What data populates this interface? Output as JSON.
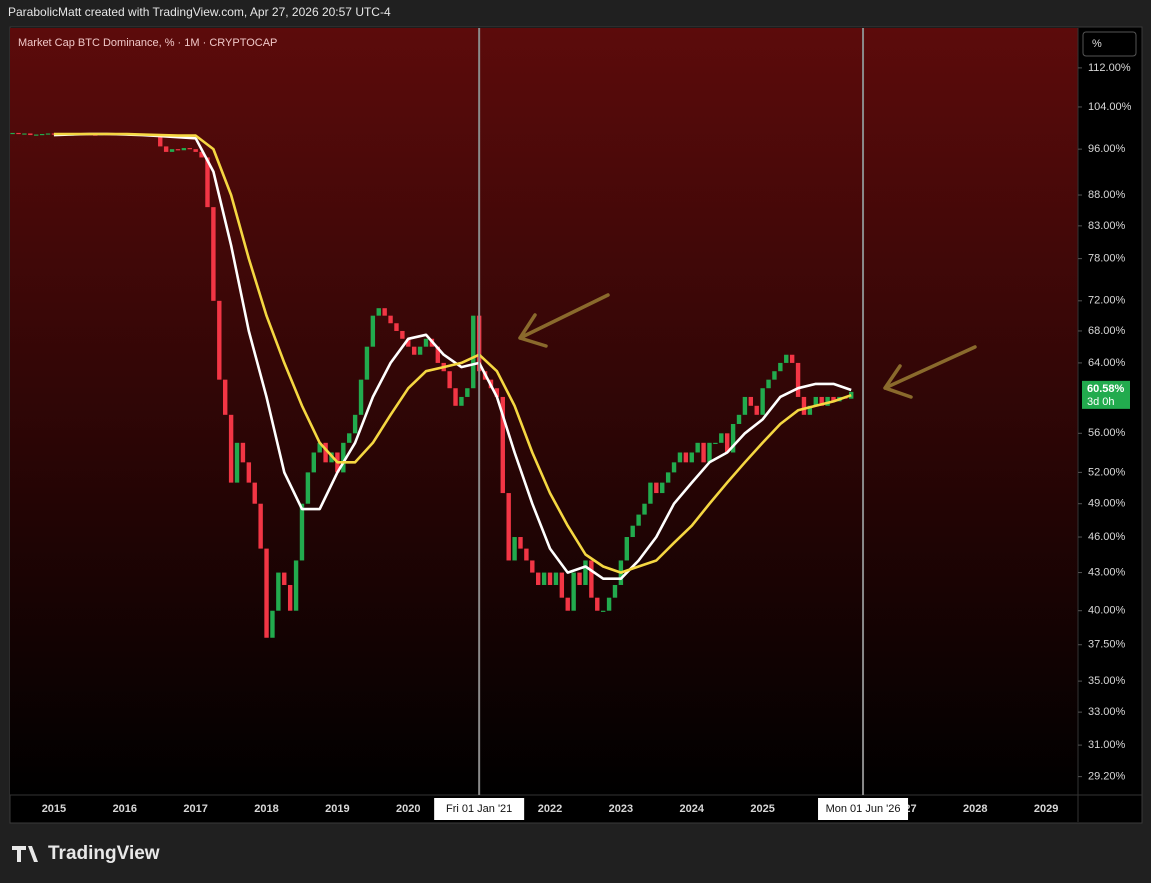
{
  "header": "ParabolicMatt created with TradingView.com, Apr 27, 2026 20:57 UTC-4",
  "brand": "TradingView",
  "chart_data": {
    "type": "candlestick",
    "title": "Market Cap BTC Dominance, % · 1M · CRYPTOCAP",
    "scale_button": "%",
    "log_scale": true,
    "grid": false,
    "up_color": "#22ab4e",
    "down_color": "#f23645",
    "x": [
      "2014-06",
      "2014-07",
      "2014-08",
      "2014-09",
      "2014-10",
      "2014-11",
      "2014-12",
      "2015-01",
      "2015-02",
      "2015-03",
      "2015-04",
      "2015-05",
      "2015-06",
      "2015-07",
      "2015-08",
      "2015-09",
      "2015-10",
      "2015-11",
      "2015-12",
      "2016-01",
      "2016-02",
      "2016-03",
      "2016-04",
      "2016-05",
      "2016-06",
      "2016-07",
      "2016-08",
      "2016-09",
      "2016-10",
      "2016-11",
      "2016-12",
      "2017-01",
      "2017-02",
      "2017-03",
      "2017-04",
      "2017-05",
      "2017-06",
      "2017-07",
      "2017-08",
      "2017-09",
      "2017-10",
      "2017-11",
      "2017-12",
      "2018-01",
      "2018-02",
      "2018-03",
      "2018-04",
      "2018-05",
      "2018-06",
      "2018-07",
      "2018-08",
      "2018-09",
      "2018-10",
      "2018-11",
      "2018-12",
      "2019-01",
      "2019-02",
      "2019-03",
      "2019-04",
      "2019-05",
      "2019-06",
      "2019-07",
      "2019-08",
      "2019-09",
      "2019-10",
      "2019-11",
      "2019-12",
      "2020-01",
      "2020-02",
      "2020-03",
      "2020-04",
      "2020-05",
      "2020-06",
      "2020-07",
      "2020-08",
      "2020-09",
      "2020-10",
      "2020-11",
      "2020-12",
      "2021-01",
      "2021-02",
      "2021-03",
      "2021-04",
      "2021-05",
      "2021-06",
      "2021-07",
      "2021-08",
      "2021-09",
      "2021-10",
      "2021-11",
      "2021-12",
      "2022-01",
      "2022-02",
      "2022-03",
      "2022-04",
      "2022-05",
      "2022-06",
      "2022-07",
      "2022-08",
      "2022-09",
      "2022-10",
      "2022-11",
      "2022-12",
      "2023-01",
      "2023-02",
      "2023-03",
      "2023-04",
      "2023-05",
      "2023-06",
      "2023-07",
      "2023-08",
      "2023-09",
      "2023-10",
      "2023-11",
      "2023-12",
      "2024-01",
      "2024-02",
      "2024-03",
      "2024-04",
      "2024-05",
      "2024-06",
      "2024-07",
      "2024-08",
      "2024-09",
      "2024-10",
      "2024-11",
      "2024-12",
      "2025-01",
      "2025-02",
      "2025-03",
      "2025-04",
      "2025-05",
      "2025-06",
      "2025-07",
      "2025-08",
      "2025-09",
      "2025-10",
      "2025-11",
      "2025-12",
      "2026-01",
      "2026-02",
      "2026-03",
      "2026-04"
    ],
    "close": [
      99.0,
      98.8,
      98.9,
      98.6,
      98.7,
      98.8,
      98.9,
      98.7,
      98.8,
      98.6,
      98.7,
      98.9,
      98.8,
      98.7,
      98.6,
      98.8,
      98.7,
      98.8,
      98.9,
      98.8,
      98.7,
      98.9,
      98.6,
      98.7,
      98.6,
      96.5,
      95.5,
      96.0,
      95.8,
      96.2,
      96.0,
      95.5,
      94.5,
      86,
      72,
      62,
      58,
      51,
      55,
      53,
      51,
      49,
      45,
      38,
      40,
      43,
      42,
      40,
      44,
      49,
      52,
      54,
      55,
      53,
      54,
      52,
      55,
      56,
      58,
      62,
      66,
      70,
      71,
      70,
      69,
      68,
      67,
      66,
      65,
      66,
      67,
      66,
      64,
      63,
      61,
      59,
      60,
      61,
      70,
      63,
      62,
      61,
      60,
      50,
      44,
      46,
      45,
      44,
      43,
      42,
      43,
      42,
      43,
      41,
      40,
      43,
      42,
      44,
      41,
      40,
      40,
      41,
      42,
      44,
      46,
      47,
      48,
      49,
      51,
      50,
      51,
      52,
      53,
      54,
      53,
      54,
      55,
      53,
      55,
      55,
      56,
      54,
      57,
      58,
      60,
      59,
      58,
      61,
      62,
      63,
      64,
      65,
      64,
      60,
      58,
      59,
      60,
      59,
      60,
      59.5,
      60,
      59.8,
      60.58
    ],
    "price_tag": {
      "label": "60.58%",
      "countdown": "3d 0h"
    },
    "ma_x": [
      "2015-01",
      "2015-04",
      "2015-07",
      "2015-10",
      "2016-01",
      "2016-04",
      "2016-07",
      "2016-10",
      "2017-01",
      "2017-04",
      "2017-07",
      "2017-10",
      "2018-01",
      "2018-04",
      "2018-07",
      "2018-10",
      "2019-01",
      "2019-04",
      "2019-07",
      "2019-10",
      "2020-01",
      "2020-04",
      "2020-07",
      "2020-10",
      "2021-01",
      "2021-04",
      "2021-07",
      "2021-10",
      "2022-01",
      "2022-04",
      "2022-07",
      "2022-10",
      "2023-01",
      "2023-04",
      "2023-07",
      "2023-10",
      "2024-01",
      "2024-04",
      "2024-07",
      "2024-10",
      "2025-01",
      "2025-04",
      "2025-07",
      "2025-10",
      "2026-01",
      "2026-04"
    ],
    "lines": [
      {
        "color": "#ffffff",
        "values": [
          98.6,
          98.7,
          98.8,
          98.8,
          98.7,
          98.6,
          98.4,
          98.2,
          98,
          92,
          80,
          68,
          60,
          52,
          48.5,
          48.5,
          52,
          55,
          60,
          64,
          67,
          67.5,
          65,
          63.5,
          64,
          60,
          54,
          49,
          45,
          43,
          43.5,
          42.5,
          42.5,
          44,
          46,
          49,
          51,
          53,
          54,
          56,
          57.5,
          60,
          61,
          61.5,
          61.5,
          60.8
        ]
      },
      {
        "color": "#f5d742",
        "values": [
          98.8,
          98.8,
          98.8,
          98.8,
          98.8,
          98.7,
          98.6,
          98.5,
          98.5,
          96,
          88,
          78,
          70,
          64,
          59,
          55,
          53,
          53,
          55,
          58,
          61,
          63,
          63.5,
          64,
          65,
          63,
          59,
          54,
          50,
          47,
          44.5,
          43.5,
          43,
          43.5,
          44,
          45.5,
          47,
          49,
          51,
          53,
          55,
          57,
          58.5,
          59,
          59.5,
          60.2
        ]
      }
    ],
    "xlim": [
      2014.38,
      2029.45
    ],
    "xticks": [
      2015,
      2016,
      2017,
      2018,
      2019,
      2020,
      2022,
      2023,
      2024,
      2025,
      2027,
      2028,
      2029
    ],
    "ylim": [
      28.2,
      120.8
    ],
    "yticks": [
      {
        "value": 112,
        "label": "112.00%"
      },
      {
        "value": 104,
        "label": "104.00%"
      },
      {
        "value": 96,
        "label": "96.00%"
      },
      {
        "value": 88,
        "label": "88.00%"
      },
      {
        "value": 83,
        "label": "83.00%"
      },
      {
        "value": 78,
        "label": "78.00%"
      },
      {
        "value": 72,
        "label": "72.00%"
      },
      {
        "value": 68,
        "label": "68.00%"
      },
      {
        "value": 64,
        "label": "64.00%"
      },
      {
        "value": 56,
        "label": "56.00%"
      },
      {
        "value": 52,
        "label": "52.00%"
      },
      {
        "value": 49,
        "label": "49.00%"
      },
      {
        "value": 46,
        "label": "46.00%"
      },
      {
        "value": 43,
        "label": "43.00%"
      },
      {
        "value": 40,
        "label": "40.00%"
      },
      {
        "value": 37.5,
        "label": "37.50%"
      },
      {
        "value": 35,
        "label": "35.00%"
      },
      {
        "value": 33,
        "label": "33.00%"
      },
      {
        "value": 31,
        "label": "31.00%"
      },
      {
        "value": 29.2,
        "label": "29.20%"
      }
    ],
    "markers": [
      {
        "x": "2021-01",
        "label": "Fri 01 Jan '21"
      },
      {
        "x": "2026-06",
        "label": "Mon 01 Jun '26"
      }
    ]
  }
}
